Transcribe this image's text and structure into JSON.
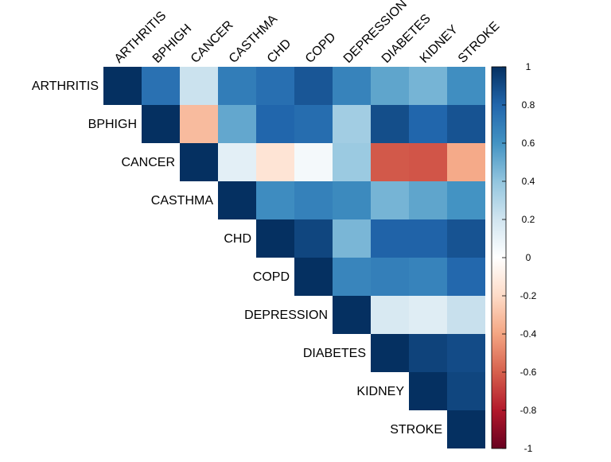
{
  "chart_data": {
    "type": "heatmap",
    "variant": "upper-triangle correlation matrix",
    "variables": [
      "ARTHRITIS",
      "BPHIGH",
      "CANCER",
      "CASTHMA",
      "CHD",
      "COPD",
      "DEPRESSION",
      "DIABETES",
      "KIDNEY",
      "STROKE"
    ],
    "matrix": [
      [
        1.0,
        0.75,
        0.22,
        0.7,
        0.76,
        0.86,
        0.67,
        0.53,
        0.47,
        0.62
      ],
      [
        null,
        1.0,
        -0.32,
        0.52,
        0.8,
        0.77,
        0.35,
        0.89,
        0.8,
        0.87
      ],
      [
        null,
        null,
        1.0,
        0.12,
        -0.15,
        0.05,
        0.37,
        -0.62,
        -0.63,
        -0.38
      ],
      [
        null,
        null,
        null,
        1.0,
        0.63,
        0.68,
        0.64,
        0.47,
        0.53,
        0.6
      ],
      [
        null,
        null,
        null,
        null,
        1.0,
        0.92,
        0.46,
        0.81,
        0.81,
        0.87
      ],
      [
        null,
        null,
        null,
        null,
        null,
        1.0,
        0.66,
        0.69,
        0.67,
        0.79
      ],
      [
        null,
        null,
        null,
        null,
        null,
        null,
        1.0,
        0.17,
        0.14,
        0.23
      ],
      [
        null,
        null,
        null,
        null,
        null,
        null,
        null,
        1.0,
        0.93,
        0.9
      ],
      [
        null,
        null,
        null,
        null,
        null,
        null,
        null,
        null,
        1.0,
        0.92
      ],
      [
        null,
        null,
        null,
        null,
        null,
        null,
        null,
        null,
        null,
        1.0
      ]
    ],
    "colorbar": {
      "range": [
        -1,
        1
      ],
      "ticks": [
        1,
        0.8,
        0.6,
        0.4,
        0.2,
        0,
        -0.2,
        -0.4,
        -0.6,
        -0.8,
        -1
      ],
      "tick_labels": [
        "1",
        "0.8",
        "0.6",
        "0.4",
        "0.2",
        "0",
        "-0.2",
        "-0.4",
        "-0.6",
        "-0.8",
        "-1"
      ],
      "palette": [
        "#67001F",
        "#B2182B",
        "#D6604D",
        "#F4A582",
        "#FDDBC7",
        "#FFFFFF",
        "#D1E5F0",
        "#92C5DE",
        "#4393C3",
        "#2166AC",
        "#053061"
      ],
      "position": "right"
    },
    "grid": false,
    "title": "",
    "xlabel": "",
    "ylabel": ""
  }
}
